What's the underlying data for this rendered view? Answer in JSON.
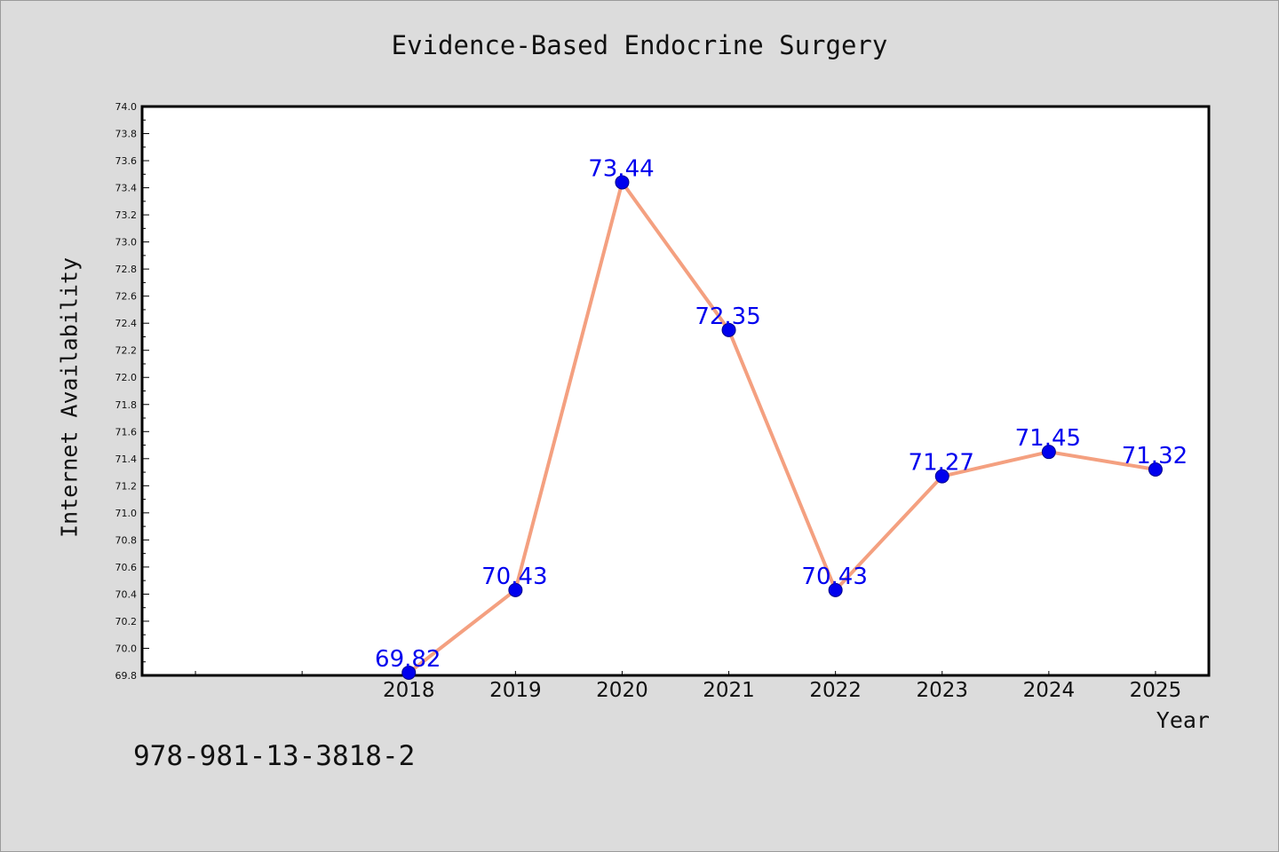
{
  "chart_data": {
    "type": "line",
    "title": "Evidence-Based Endocrine Surgery",
    "xlabel": "Year",
    "ylabel": "Internet Availability",
    "x": [
      "2018",
      "2019",
      "2020",
      "2021",
      "2022",
      "2023",
      "2024",
      "2025"
    ],
    "series": [
      {
        "values": [
          69.82,
          70.43,
          73.44,
          72.35,
          70.43,
          71.27,
          71.45,
          71.32
        ],
        "labels": [
          "69.82",
          "70.43",
          "73.44",
          "72.35",
          "70.43",
          "71.27",
          "71.45",
          "71.32"
        ]
      }
    ],
    "ylim": [
      69.8,
      74.0
    ],
    "yticks": [
      "69.8",
      "70.0",
      "70.2",
      "70.4",
      "70.6",
      "70.8",
      "71.0",
      "71.2",
      "71.4",
      "71.6",
      "71.8",
      "72.0",
      "72.2",
      "72.4",
      "72.6",
      "72.8",
      "73.0",
      "73.2",
      "73.4",
      "73.6",
      "73.8",
      "74.0"
    ],
    "grid": false,
    "legend": "none",
    "colors": {
      "line": "#f4a080",
      "marker": "#0000ee",
      "data_label": "#0000ee",
      "plot_background": "#ffffff",
      "page_background": "#dcdcdc"
    }
  },
  "footer": {
    "isbn": "978-981-13-3818-2"
  }
}
